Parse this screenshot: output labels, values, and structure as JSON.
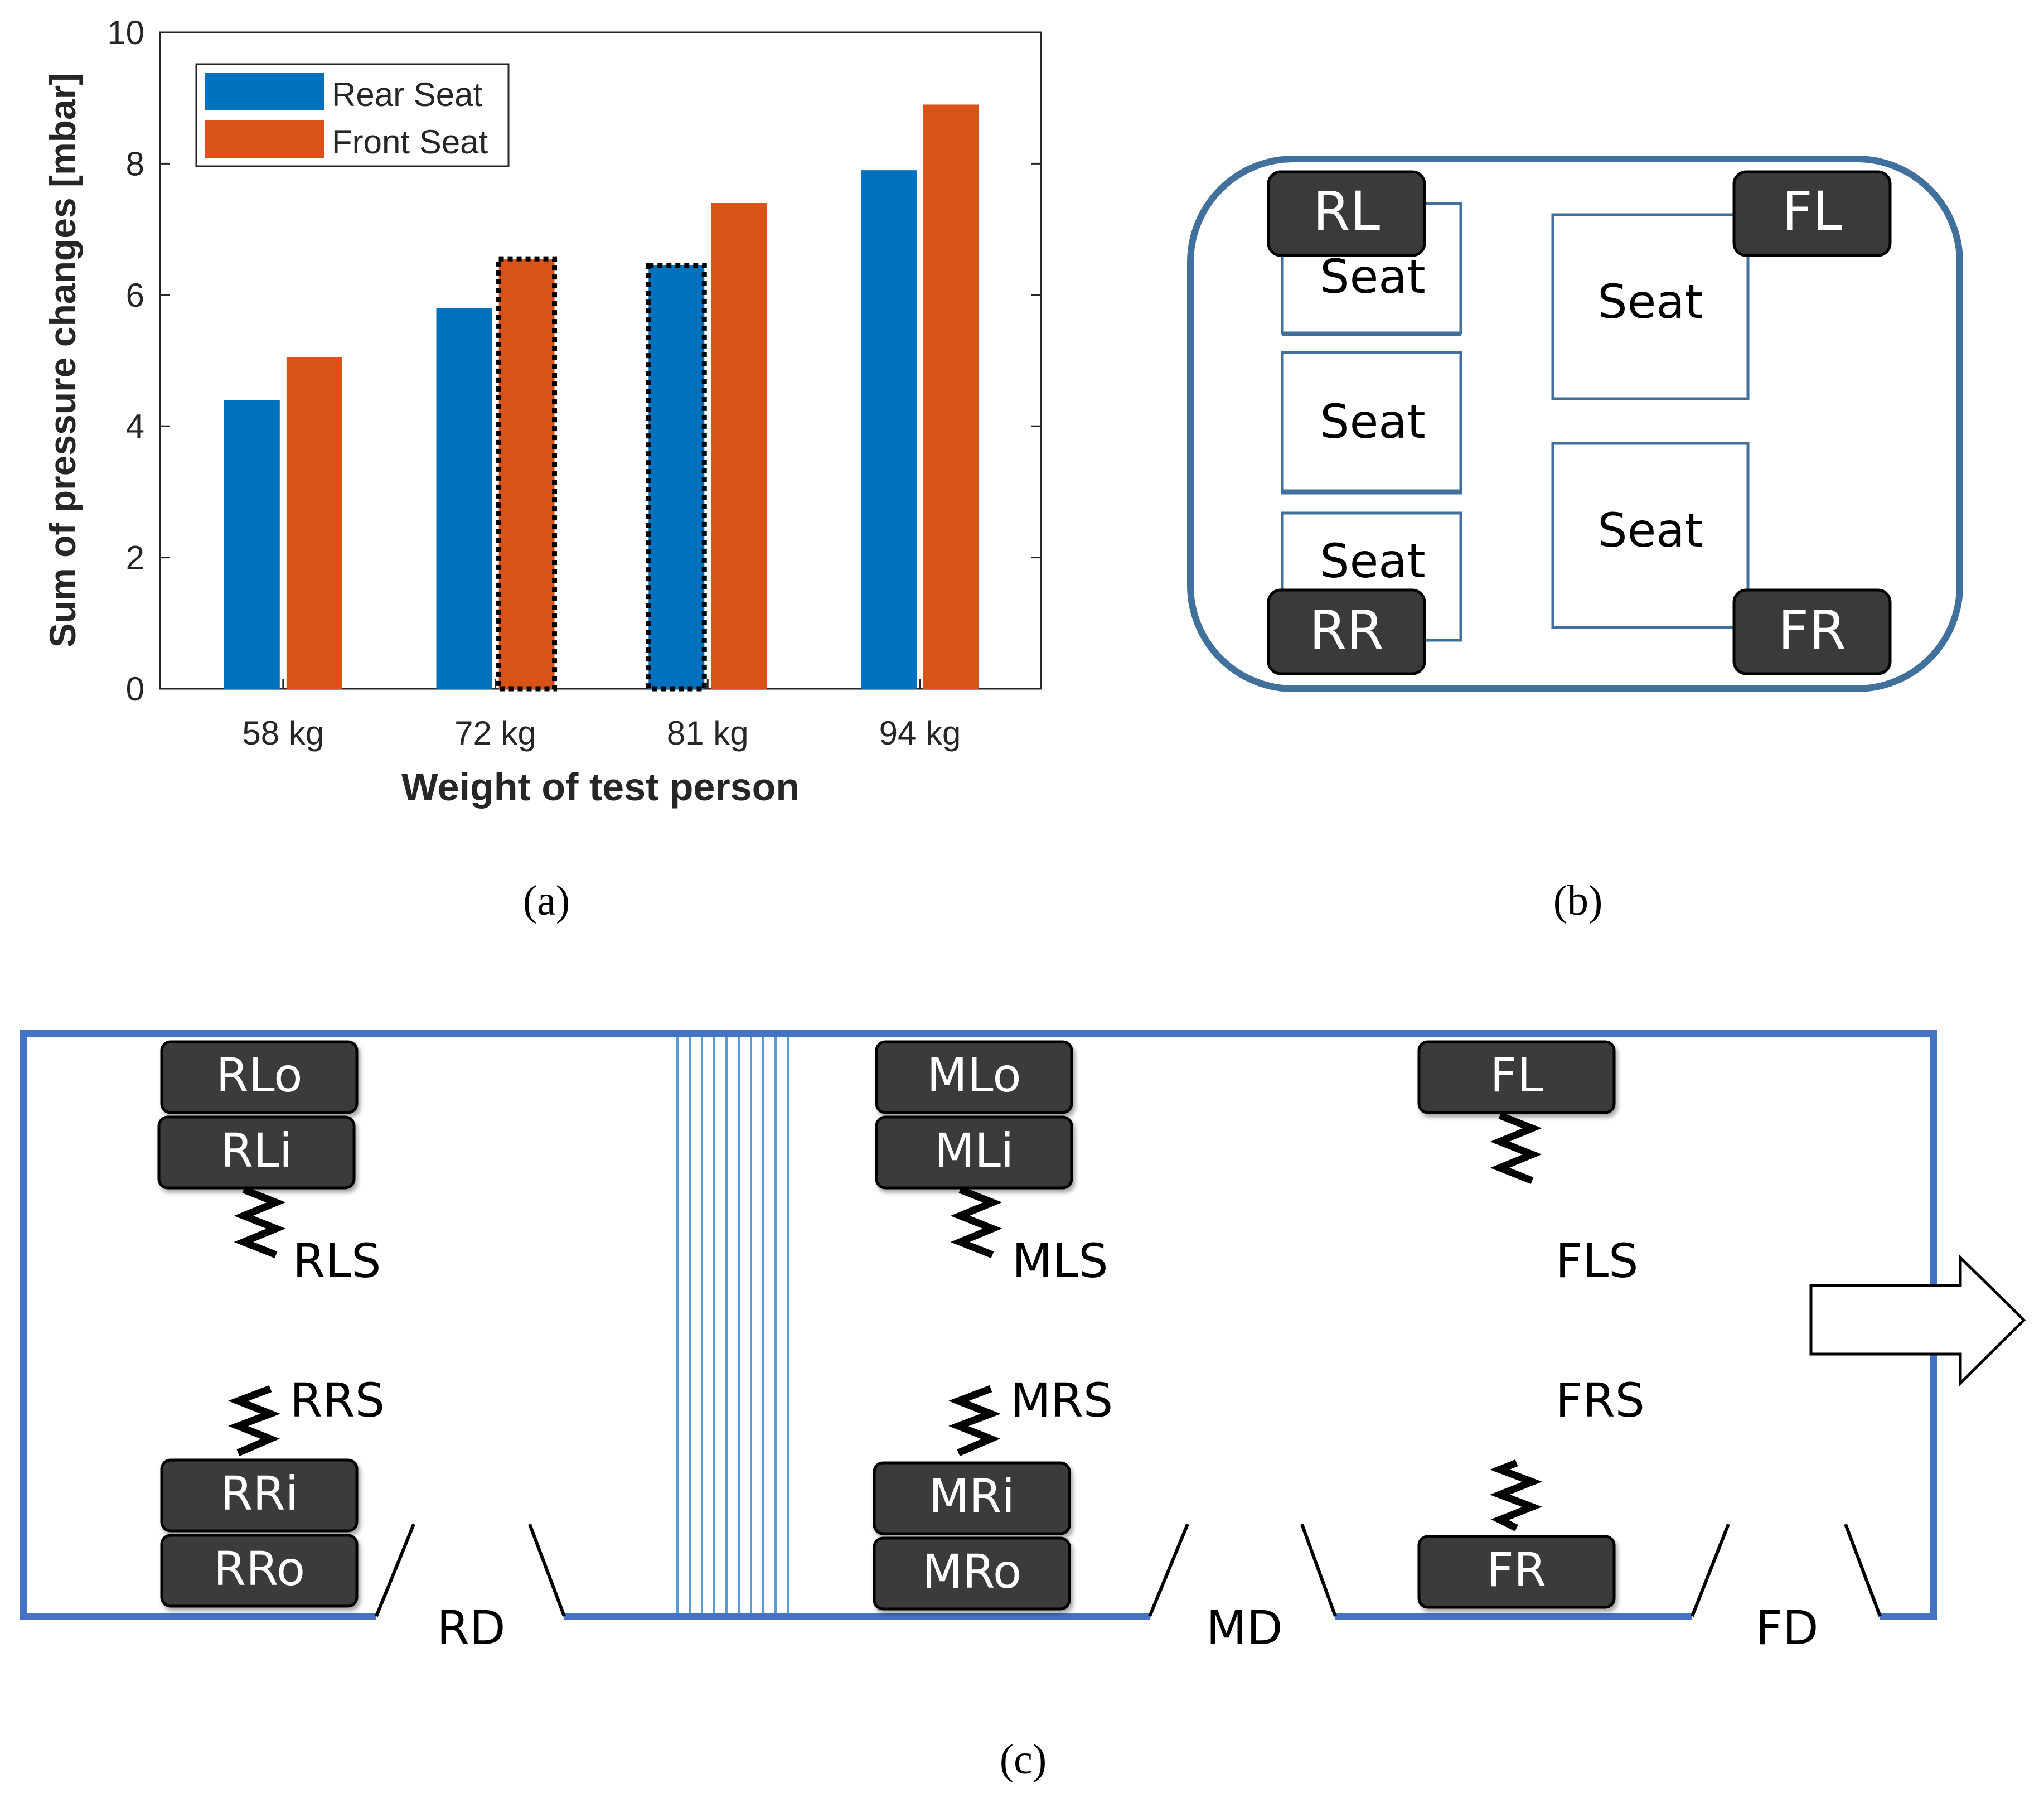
{
  "chart_data": {
    "type": "bar",
    "title": "",
    "xlabel": "Weight of test person",
    "ylabel": "Sum of pressure changes [mbar]",
    "ylim": [
      0,
      10
    ],
    "yticks": [
      "0",
      "2",
      "4",
      "6",
      "8",
      "10"
    ],
    "categories": [
      "58 kg",
      "72 kg",
      "81 kg",
      "94 kg"
    ],
    "series": [
      {
        "name": "Rear Seat",
        "color": "#0072BD",
        "values": [
          4.4,
          5.8,
          6.45,
          7.9
        ],
        "highlighted": [
          false,
          false,
          true,
          false
        ]
      },
      {
        "name": "Front Seat",
        "color": "#D95319",
        "values": [
          5.05,
          6.55,
          7.4,
          8.9
        ],
        "highlighted": [
          false,
          true,
          false,
          false
        ]
      }
    ],
    "legend": "top-left"
  },
  "captions": {
    "a": "(a)",
    "b": "(b)",
    "c": "(c)"
  },
  "seat_layout": {
    "wheels": {
      "rl": "RL",
      "fl": "FL",
      "rr": "RR",
      "fr": "FR"
    },
    "seats": {
      "rear_top": "Seat",
      "rear_mid": "Seat",
      "rear_bottom": "Seat",
      "front_top": "Seat",
      "front_bottom": "Seat"
    }
  },
  "sensor_layout": {
    "sensors": {
      "rl_o": "RLo",
      "rl_i": "RLi",
      "ml_o": "MLo",
      "ml_i": "MLi",
      "fl": "FL",
      "rr_i": "RRi",
      "rr_o": "RRo",
      "mr_i": "MRi",
      "mr_o": "MRo",
      "fr": "FR"
    },
    "springs": {
      "rls": "RLS",
      "mls": "MLS",
      "fls": "FLS",
      "rrs": "RRS",
      "mrs": "MRS",
      "frs": "FRS"
    },
    "doors": {
      "rd": "RD",
      "md": "MD",
      "fd": "FD"
    }
  }
}
